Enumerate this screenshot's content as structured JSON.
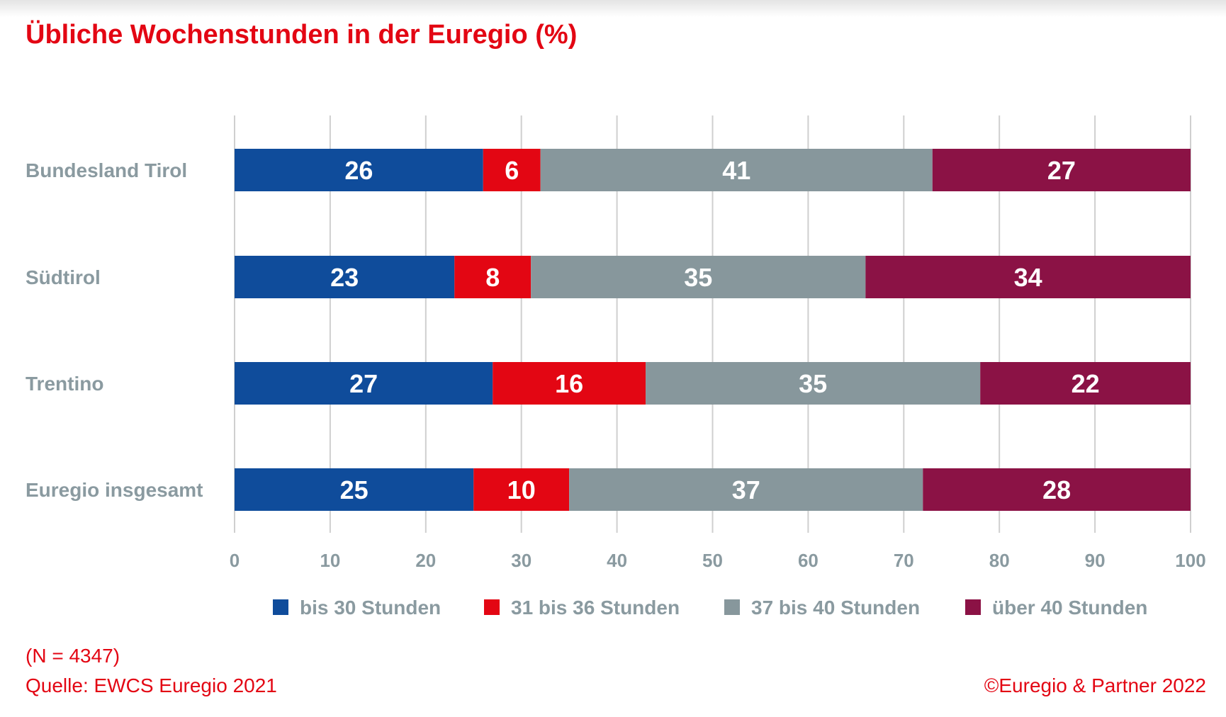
{
  "title": "Übliche Wochenstunden in der Euregio (%)",
  "footer": {
    "n": "(N = 4347)",
    "source": "Quelle: EWCS Euregio 2021",
    "copyright": "©Euregio & Partner 2022"
  },
  "chart_data": {
    "type": "bar",
    "orientation": "horizontal",
    "stacked": true,
    "title": "Übliche Wochenstunden in der Euregio (%)",
    "categories": [
      "Bundesland Tirol",
      "Südtirol",
      "Trentino",
      "Euregio insgesamt"
    ],
    "series": [
      {
        "name": "bis 30 Stunden",
        "color": "#0f4c9b",
        "values": [
          26,
          23,
          27,
          25
        ]
      },
      {
        "name": "31 bis 36 Stunden",
        "color": "#e30613",
        "values": [
          6,
          8,
          16,
          10
        ]
      },
      {
        "name": "37 bis 40 Stunden",
        "color": "#87979c",
        "values": [
          41,
          35,
          35,
          37
        ]
      },
      {
        "name": "über 40 Stunden",
        "color": "#8b1245",
        "values": [
          27,
          34,
          22,
          28
        ]
      }
    ],
    "xlim": [
      0,
      100
    ],
    "xticks": [
      0,
      10,
      20,
      30,
      40,
      50,
      60,
      70,
      80,
      90,
      100
    ],
    "grid": true,
    "legend": "bottom"
  }
}
